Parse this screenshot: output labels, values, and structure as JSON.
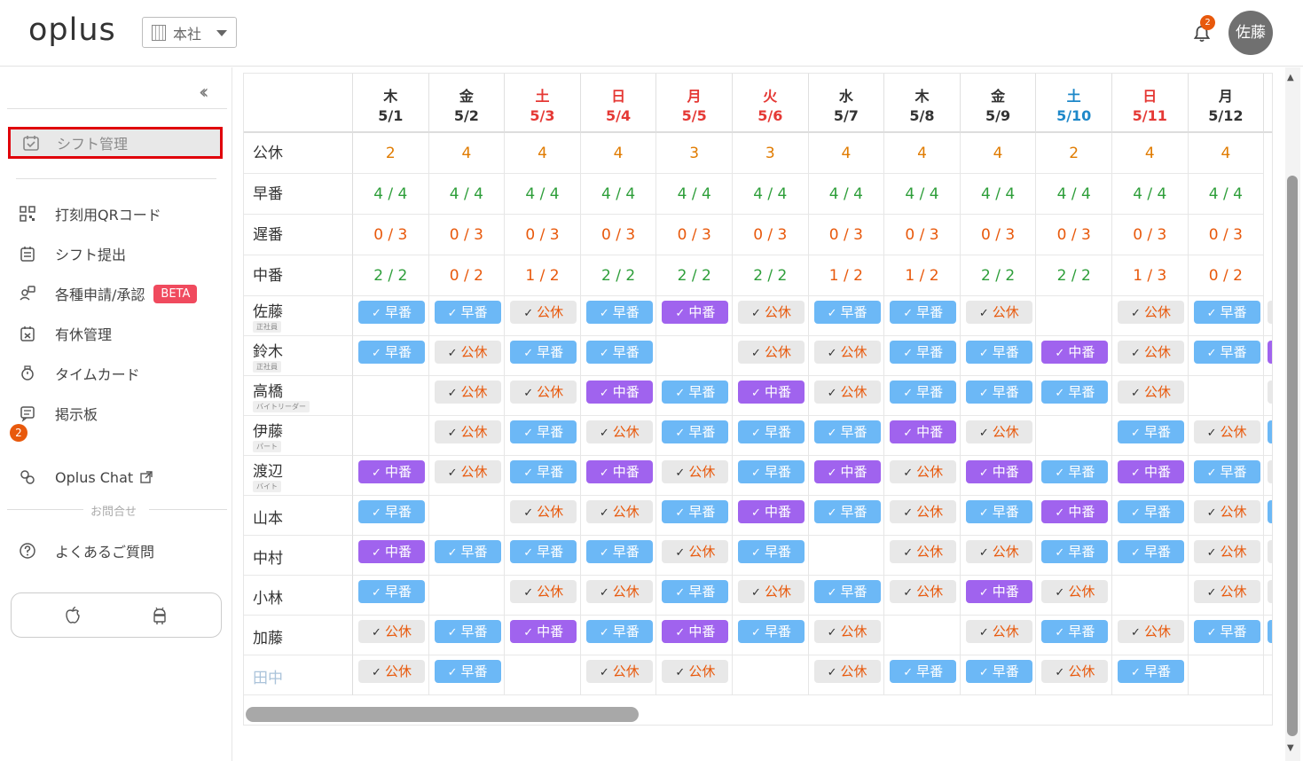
{
  "header": {
    "logo": "oplus",
    "store": "本社",
    "notifications": "2",
    "user": "佐藤"
  },
  "sidebar": {
    "active": "シフト管理",
    "items": [
      {
        "label": "打刻用QRコード",
        "icon": "qr-code-icon"
      },
      {
        "label": "シフト提出",
        "icon": "shift-submit-icon"
      },
      {
        "label": "各種申請/承認",
        "icon": "request-icon"
      },
      {
        "label": "有休管理",
        "icon": "paid-leave-icon"
      },
      {
        "label": "タイムカード",
        "icon": "timecard-icon"
      },
      {
        "label": "掲示板",
        "icon": "board-icon"
      }
    ],
    "beta": "BETA",
    "board_badge": "2",
    "chat": "Oplus Chat",
    "contact_label": "お問合せ",
    "faq": "よくあるご質問"
  },
  "colors": {
    "early": "#6cb8f6",
    "mid": "#a063ee",
    "off_text": "#e8590c",
    "red_day": "#e53935",
    "blue_day": "#1e88c9",
    "green_count": "#2e9e3a",
    "orange_count": "#e07b00"
  },
  "schedule": {
    "days": [
      {
        "dow": "木",
        "date": "5/1",
        "kind": "normal"
      },
      {
        "dow": "金",
        "date": "5/2",
        "kind": "normal"
      },
      {
        "dow": "土",
        "date": "5/3",
        "kind": "holiday"
      },
      {
        "dow": "日",
        "date": "5/4",
        "kind": "holiday"
      },
      {
        "dow": "月",
        "date": "5/5",
        "kind": "holiday"
      },
      {
        "dow": "火",
        "date": "5/6",
        "kind": "holiday"
      },
      {
        "dow": "水",
        "date": "5/7",
        "kind": "normal"
      },
      {
        "dow": "木",
        "date": "5/8",
        "kind": "normal"
      },
      {
        "dow": "金",
        "date": "5/9",
        "kind": "normal"
      },
      {
        "dow": "土",
        "date": "5/10",
        "kind": "saturday"
      },
      {
        "dow": "日",
        "date": "5/11",
        "kind": "holiday"
      },
      {
        "dow": "月",
        "date": "5/12",
        "kind": "normal"
      }
    ],
    "summary": [
      {
        "label": "公休",
        "type": "off",
        "values": [
          "2",
          "4",
          "4",
          "4",
          "3",
          "3",
          "4",
          "4",
          "4",
          "2",
          "4",
          "4"
        ]
      },
      {
        "label": "早番",
        "type": "early",
        "values": [
          "4 / 4",
          "4 / 4",
          "4 / 4",
          "4 / 4",
          "4 / 4",
          "4 / 4",
          "4 / 4",
          "4 / 4",
          "4 / 4",
          "4 / 4",
          "4 / 4",
          "4 / 4"
        ]
      },
      {
        "label": "遅番",
        "type": "late",
        "values": [
          "0 / 3",
          "0 / 3",
          "0 / 3",
          "0 / 3",
          "0 / 3",
          "0 / 3",
          "0 / 3",
          "0 / 3",
          "0 / 3",
          "0 / 3",
          "0 / 3",
          "0 / 3"
        ]
      },
      {
        "label": "中番",
        "type": "mid",
        "values": [
          "2 / 2",
          "0 / 2",
          "1 / 2",
          "2 / 2",
          "2 / 2",
          "2 / 2",
          "1 / 2",
          "1 / 2",
          "2 / 2",
          "2 / 2",
          "1 / 3",
          "0 / 2"
        ]
      }
    ],
    "labels": {
      "early": "早番",
      "mid": "中番",
      "off": "公休"
    },
    "staff": [
      {
        "name": "佐藤",
        "role": "正社員",
        "shifts": [
          "E",
          "E",
          "O",
          "E",
          "M",
          "O",
          "E",
          "E",
          "O",
          "",
          "O",
          "E"
        ],
        "next": "O"
      },
      {
        "name": "鈴木",
        "role": "正社員",
        "shifts": [
          "E",
          "O",
          "E",
          "E",
          "",
          "O",
          "O",
          "E",
          "E",
          "M",
          "O",
          "E"
        ],
        "next": "M"
      },
      {
        "name": "高橋",
        "role": "バイトリーダー",
        "shifts": [
          "",
          "O",
          "O",
          "M",
          "E",
          "M",
          "O",
          "E",
          "E",
          "E",
          "O",
          ""
        ],
        "next": "O"
      },
      {
        "name": "伊藤",
        "role": "パート",
        "shifts": [
          "",
          "O",
          "E",
          "O",
          "E",
          "E",
          "E",
          "M",
          "O",
          "",
          "E",
          "O"
        ],
        "next": "E"
      },
      {
        "name": "渡辺",
        "role": "バイト",
        "shifts": [
          "M",
          "O",
          "E",
          "M",
          "O",
          "E",
          "M",
          "O",
          "M",
          "E",
          "M",
          "E"
        ],
        "next": "O"
      },
      {
        "name": "山本",
        "role": "",
        "shifts": [
          "E",
          "",
          "O",
          "O",
          "E",
          "M",
          "E",
          "O",
          "E",
          "M",
          "E",
          "O"
        ],
        "next": "E"
      },
      {
        "name": "中村",
        "role": "",
        "shifts": [
          "M",
          "E",
          "E",
          "E",
          "O",
          "E",
          "",
          "O",
          "O",
          "E",
          "E",
          "O"
        ],
        "next": "O"
      },
      {
        "name": "小林",
        "role": "",
        "shifts": [
          "E",
          "",
          "O",
          "O",
          "E",
          "O",
          "E",
          "O",
          "M",
          "O",
          "",
          "O"
        ],
        "next": "O"
      },
      {
        "name": "加藤",
        "role": "",
        "shifts": [
          "O",
          "E",
          "M",
          "E",
          "M",
          "E",
          "O",
          "",
          "O",
          "E",
          "O",
          "E"
        ],
        "next": "E"
      },
      {
        "name": "田中",
        "role": "",
        "faded": true,
        "shifts": [
          "O",
          "E",
          "",
          "O",
          "O",
          "",
          "O",
          "E",
          "E",
          "O",
          "E",
          ""
        ],
        "next": ""
      }
    ]
  }
}
